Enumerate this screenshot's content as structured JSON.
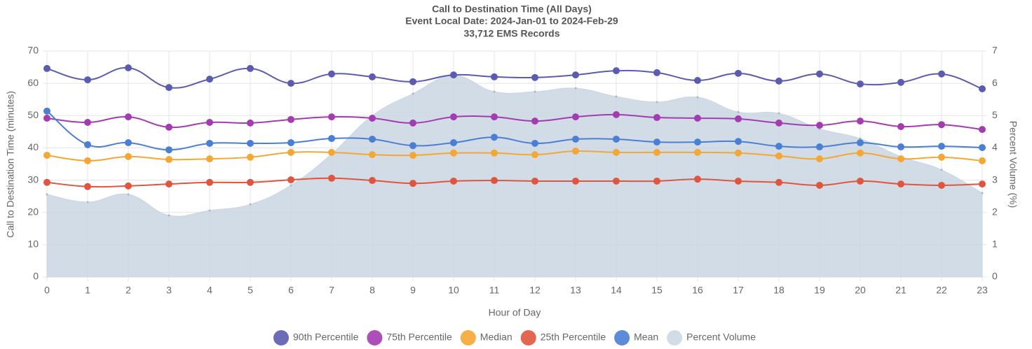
{
  "chart_data": {
    "type": "line",
    "title": "Call to Destination Time (All Days)",
    "subtitle": "Event Local Date: 2024-Jan-01 to 2024-Feb-29",
    "subtitle2": "33,712 EMS Records",
    "x_label": "Hour of Day",
    "y_label": "Call to Destination Time (minutes)",
    "y2_label": "Percent Volume (%)",
    "x": [
      0,
      1,
      2,
      3,
      4,
      5,
      6,
      7,
      8,
      9,
      10,
      11,
      12,
      13,
      14,
      15,
      16,
      17,
      18,
      19,
      20,
      21,
      22,
      23
    ],
    "xlim": [
      0,
      23
    ],
    "xticks": [
      0,
      1,
      2,
      3,
      4,
      5,
      6,
      7,
      8,
      9,
      10,
      11,
      12,
      13,
      14,
      15,
      16,
      17,
      18,
      19,
      20,
      21,
      22,
      23
    ],
    "ylim": [
      0,
      70
    ],
    "yticks": [
      0,
      10,
      20,
      30,
      40,
      50,
      60,
      70
    ],
    "y2lim": [
      0,
      7
    ],
    "y2ticks": [
      0,
      1,
      2,
      3,
      4,
      5,
      6,
      7
    ],
    "grid": true,
    "legend": "bottom",
    "series": [
      {
        "name": "90th Percentile",
        "color": "#5b5bb0",
        "values": [
          64.6,
          61.1,
          64.8,
          58.7,
          61.3,
          64.6,
          60.0,
          62.9,
          62.0,
          60.5,
          62.6,
          62.0,
          61.8,
          62.6,
          63.9,
          63.3,
          60.9,
          63.1,
          60.7,
          62.9,
          59.8,
          60.3,
          62.9,
          58.3
        ]
      },
      {
        "name": "75th Percentile",
        "color": "#a33cb0",
        "values": [
          49.2,
          47.9,
          49.6,
          46.4,
          47.9,
          47.7,
          48.8,
          49.6,
          49.2,
          47.7,
          49.6,
          49.6,
          48.3,
          49.6,
          50.3,
          49.4,
          49.2,
          49.0,
          47.7,
          47.0,
          48.3,
          46.6,
          47.2,
          45.7
        ]
      },
      {
        "name": "Median",
        "color": "#f5a733",
        "values": [
          37.7,
          36.0,
          37.3,
          36.4,
          36.6,
          37.1,
          38.6,
          38.6,
          37.9,
          37.7,
          38.4,
          38.4,
          37.9,
          39.0,
          38.6,
          38.6,
          38.6,
          38.4,
          37.5,
          36.6,
          38.4,
          36.6,
          37.1,
          36.0
        ]
      },
      {
        "name": "25th Percentile",
        "color": "#e0553d",
        "values": [
          29.3,
          28.0,
          28.2,
          28.8,
          29.3,
          29.3,
          30.1,
          30.6,
          29.9,
          29.0,
          29.7,
          29.9,
          29.7,
          29.7,
          29.7,
          29.7,
          30.3,
          29.7,
          29.3,
          28.4,
          29.7,
          28.8,
          28.4,
          28.8
        ]
      },
      {
        "name": "Mean",
        "color": "#4a7fd4",
        "values": [
          51.4,
          41.0,
          41.6,
          39.4,
          41.4,
          41.4,
          41.6,
          42.9,
          42.7,
          40.7,
          41.6,
          43.3,
          41.4,
          42.7,
          42.7,
          41.8,
          41.8,
          42.0,
          40.5,
          40.3,
          41.6,
          40.3,
          40.5,
          40.1
        ]
      },
      {
        "name": "Percent Volume",
        "color": "#c9d6e3",
        "axis": "y2",
        "area": true,
        "values": [
          2.56,
          2.32,
          2.56,
          1.91,
          2.06,
          2.25,
          2.84,
          3.81,
          5.0,
          5.68,
          6.24,
          5.74,
          5.74,
          5.85,
          5.59,
          5.42,
          5.57,
          5.11,
          5.07,
          4.59,
          4.29,
          3.73,
          3.32,
          2.6
        ]
      }
    ]
  }
}
